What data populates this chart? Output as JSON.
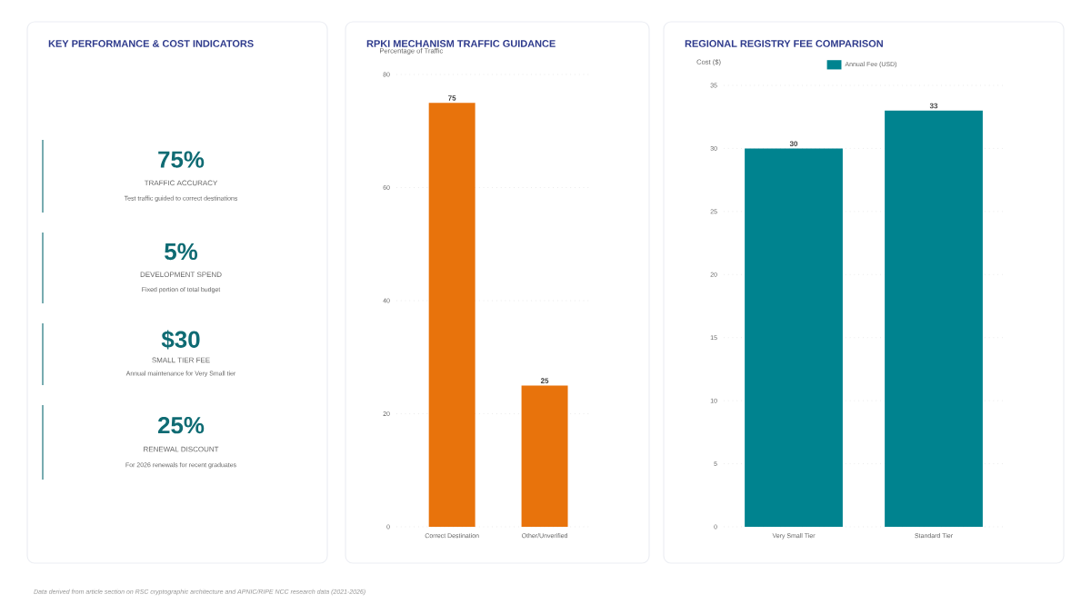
{
  "chart_data": [
    {
      "type": "other",
      "title": "KEY PERFORMANCE & COST INDICATORS",
      "categories": [
        "TRAFFIC ACCURACY",
        "DEVELOPMENT SPEND",
        "SMALL TIER FEE",
        "RENEWAL DISCOUNT"
      ],
      "value_labels": [
        "75%",
        "5%",
        "$30",
        "25%"
      ],
      "annotations": [
        "Test traffic guided to correct destinations",
        "Fixed portion of total budget",
        "Annual maintenance for Very Small tier",
        "For 2026 renewals for recent graduates",
        "Data derived from article section on RSC cryptographic architecture and APNIC/RIPE NCC research data (2021-2026)"
      ]
    },
    {
      "type": "bar",
      "title": "RPKI MECHANISM TRAFFIC GUIDANCE",
      "ylabel": "Percentage of Traffic",
      "categories": [
        "Correct Destination",
        "Other/Unverified"
      ],
      "series": [
        {
          "color": "#e8730c",
          "values": [
            75,
            25
          ]
        }
      ],
      "ylim": [
        0,
        80
      ],
      "yticks": [
        0,
        20,
        40,
        60,
        80
      ],
      "grid": "y",
      "data_labels": true
    },
    {
      "type": "bar",
      "title": "REGIONAL REGISTRY FEE COMPARISON",
      "ylabel": "Cost ($)",
      "categories": [
        "Very Small Tier",
        "Standard Tier"
      ],
      "series": [
        {
          "name": "Annual Fee (USD)",
          "color": "#00838f",
          "values": [
            30,
            33
          ]
        }
      ],
      "ylim": [
        0,
        35
      ],
      "yticks": [
        0,
        5,
        10,
        15,
        20,
        25,
        30,
        35
      ],
      "grid": "y",
      "legend": "top",
      "data_labels": true
    }
  ]
}
